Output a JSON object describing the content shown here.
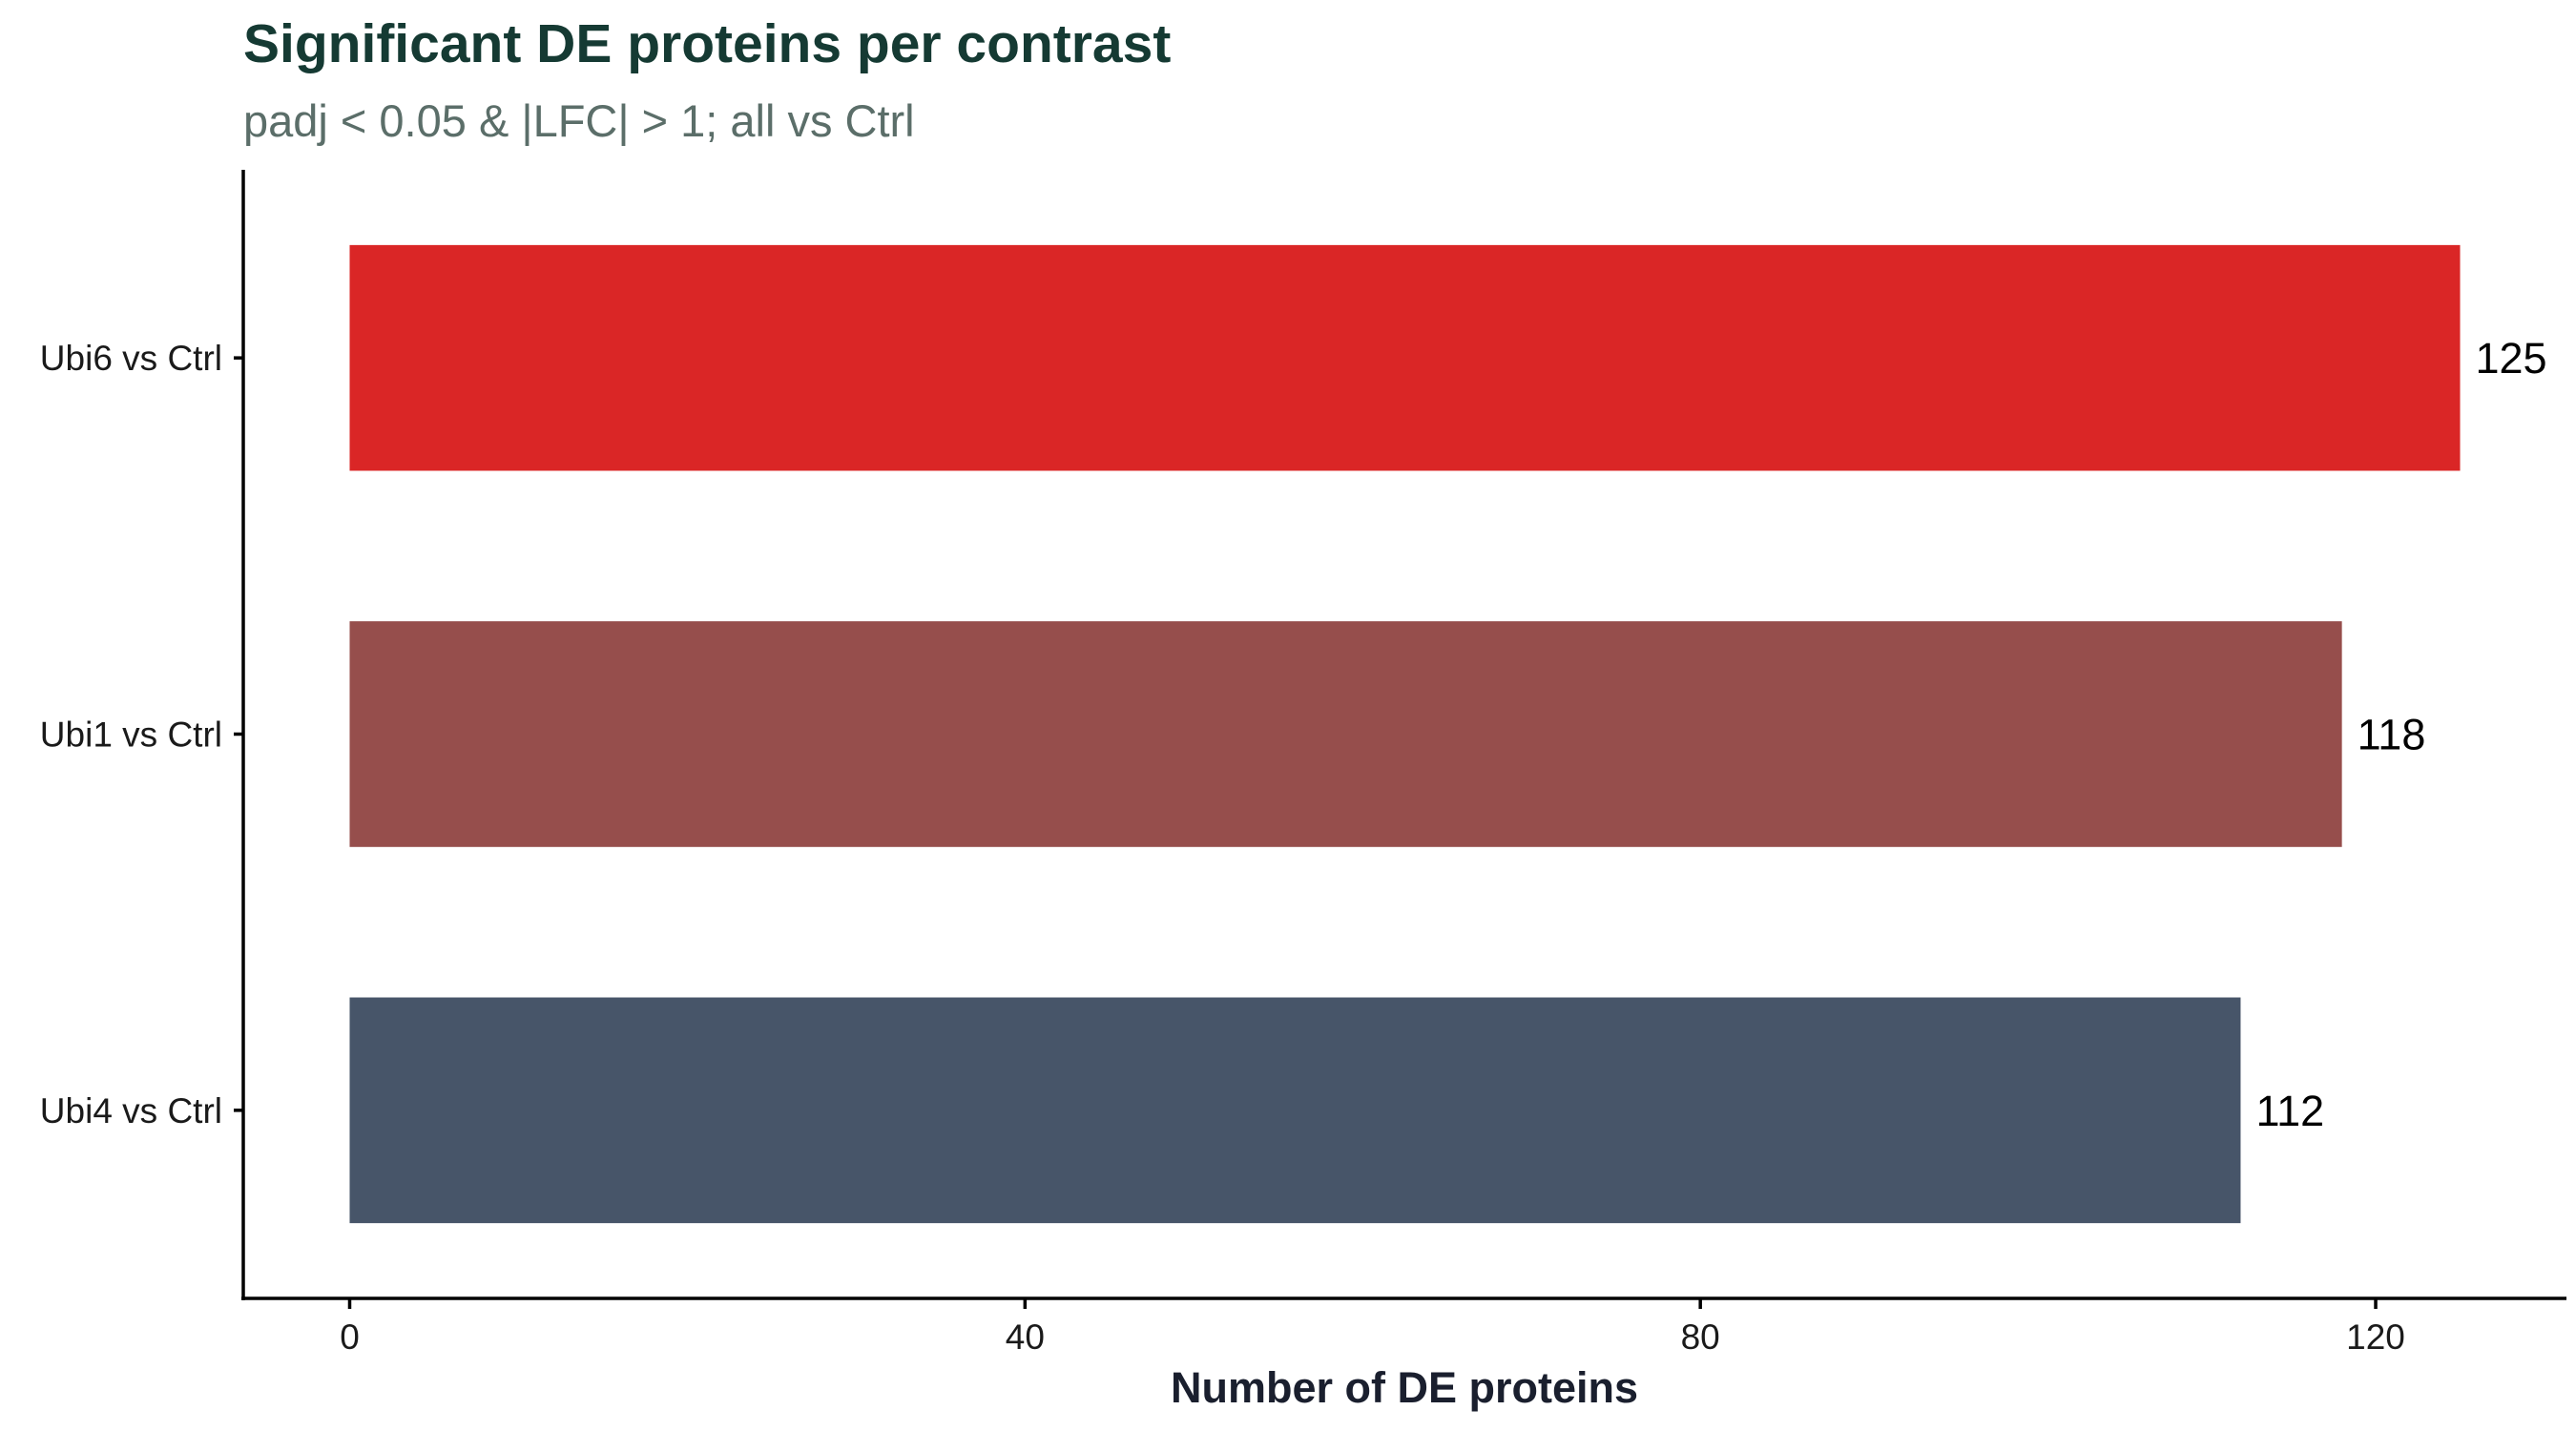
{
  "chart_data": {
    "type": "bar",
    "orientation": "horizontal",
    "title": "Significant DE proteins per contrast",
    "subtitle": "padj < 0.05 & |LFC| > 1; all vs Ctrl",
    "xlabel": "Number of DE proteins",
    "ylabel": "",
    "categories": [
      "Ubi6 vs Ctrl",
      "Ubi1 vs Ctrl",
      "Ubi4 vs Ctrl"
    ],
    "values": [
      125,
      118,
      112
    ],
    "data_labels": [
      "125",
      "118",
      "112"
    ],
    "colors": [
      "#da2626",
      "#964e4c",
      "#475569"
    ],
    "xlim": [
      -6.3,
      131.3
    ],
    "xticks": [
      0,
      40,
      80,
      120
    ],
    "xtick_labels": [
      "0",
      "40",
      "80",
      "120"
    ],
    "grid": false,
    "legend": "none"
  }
}
